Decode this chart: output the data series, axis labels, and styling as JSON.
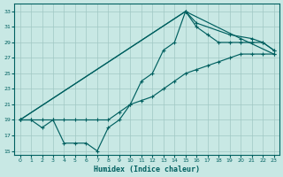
{
  "xlabel": "Humidex (Indice chaleur)",
  "ylabel": "",
  "bg_color": "#c8e8e4",
  "grid_color": "#a0c8c4",
  "line_color": "#006060",
  "xlim": [
    -0.5,
    23.5
  ],
  "ylim": [
    14.5,
    34.0
  ],
  "xticks": [
    0,
    1,
    2,
    3,
    4,
    5,
    6,
    7,
    8,
    9,
    10,
    11,
    12,
    13,
    14,
    15,
    16,
    17,
    18,
    19,
    20,
    21,
    22,
    23
  ],
  "yticks": [
    15,
    17,
    19,
    21,
    23,
    25,
    27,
    29,
    31,
    33
  ],
  "line1_x": [
    0,
    1,
    2,
    3,
    4,
    5,
    6,
    7,
    8,
    9,
    10,
    11,
    12,
    13,
    14,
    15,
    16,
    17,
    18,
    19,
    20,
    21,
    22,
    23
  ],
  "line1_y": [
    19,
    19,
    18,
    19,
    16,
    16,
    16,
    15,
    18,
    19,
    21,
    24,
    25,
    28,
    29,
    33,
    31,
    30,
    29,
    29,
    29,
    29,
    29,
    28
  ],
  "line2_x": [
    0,
    1,
    2,
    3,
    4,
    5,
    6,
    7,
    8,
    9,
    10,
    11,
    12,
    13,
    14,
    15,
    16,
    17,
    18,
    19,
    20,
    21,
    22,
    23
  ],
  "line2_y": [
    19,
    19,
    19,
    19,
    19,
    19,
    19,
    19,
    19,
    20,
    21,
    21.5,
    22,
    23,
    24,
    25,
    25.5,
    26,
    26.5,
    27,
    27.5,
    27.5,
    27.5,
    27.5
  ],
  "line3_x": [
    0,
    15,
    16,
    19,
    21,
    22,
    23
  ],
  "line3_y": [
    19,
    33,
    31.5,
    30,
    29.5,
    29,
    28
  ],
  "line4_x": [
    0,
    15,
    20,
    23
  ],
  "line4_y": [
    19,
    33,
    29.5,
    27.5
  ]
}
